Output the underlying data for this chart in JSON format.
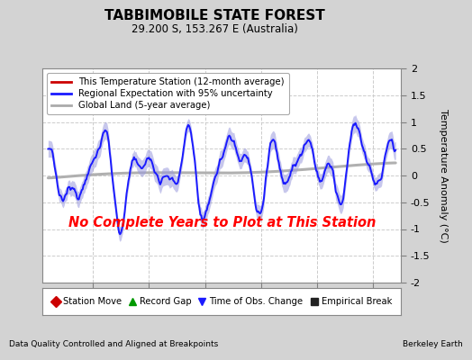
{
  "title": "TABBIMOBILE STATE FOREST",
  "subtitle": "29.200 S, 153.267 E (Australia)",
  "ylabel": "Temperature Anomaly (°C)",
  "xlabel_left": "Data Quality Controlled and Aligned at Breakpoints",
  "xlabel_right": "Berkeley Earth",
  "no_data_text": "No Complete Years to Plot at This Station",
  "ylim": [
    -2,
    2
  ],
  "yticks": [
    -2,
    -1.5,
    -1,
    -0.5,
    0,
    0.5,
    1,
    1.5,
    2
  ],
  "xlim": [
    1950.5,
    1982.5
  ],
  "xticks": [
    1955,
    1960,
    1965,
    1970,
    1975,
    1980
  ],
  "bg_color": "#d3d3d3",
  "plot_bg_color": "#ffffff",
  "regional_color": "#1a1aff",
  "regional_fill_color": "#9999dd",
  "global_land_color": "#b0b0b0",
  "legend1_items": [
    {
      "label": "This Temperature Station (12-month average)",
      "color": "#cc0000",
      "lw": 2
    },
    {
      "label": "Regional Expectation with 95% uncertainty",
      "color": "#1a1aff",
      "lw": 2
    },
    {
      "label": "Global Land (5-year average)",
      "color": "#aaaaaa",
      "lw": 2
    }
  ],
  "legend2_items": [
    {
      "label": "Station Move",
      "marker": "D",
      "color": "#cc0000"
    },
    {
      "label": "Record Gap",
      "marker": "^",
      "color": "#009900"
    },
    {
      "label": "Time of Obs. Change",
      "marker": "v",
      "color": "#1a1aff"
    },
    {
      "label": "Empirical Break",
      "marker": "s",
      "color": "#222222"
    }
  ],
  "seed": 12345
}
